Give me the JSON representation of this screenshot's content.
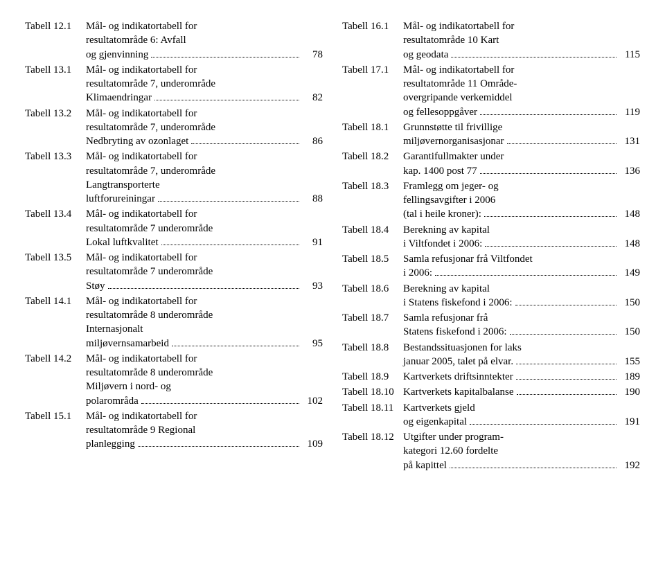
{
  "left": [
    {
      "label": "Tabell 12.1",
      "lines": [
        "Mål- og indikatortabell for",
        "resultatområde 6: Avfall"
      ],
      "last": "og gjenvinning",
      "page": "78"
    },
    {
      "label": "Tabell 13.1",
      "lines": [
        "Mål- og indikatortabell for",
        "resultatområde 7, underområde"
      ],
      "last": "Klimaendringar",
      "page": "82"
    },
    {
      "label": "Tabell 13.2",
      "lines": [
        "Mål- og indikatortabell for",
        "resultatområde 7, underområde"
      ],
      "last": "Nedbryting av ozonlaget",
      "page": "86"
    },
    {
      "label": "Tabell 13.3",
      "lines": [
        "Mål- og indikatortabell for",
        "resultatområde 7, underområde",
        "Langtransporterte"
      ],
      "last": "luftforureiningar",
      "page": "88"
    },
    {
      "label": "Tabell 13.4",
      "lines": [
        "Mål- og indikatortabell for",
        "resultatområde 7 underområde"
      ],
      "last": "Lokal luftkvalitet",
      "page": "91"
    },
    {
      "label": "Tabell 13.5",
      "lines": [
        "Mål- og indikatortabell for",
        "resultatområde 7 underområde"
      ],
      "last": "Støy",
      "page": "93"
    },
    {
      "label": "Tabell 14.1",
      "lines": [
        "Mål- og indikatortabell for",
        "resultatområde 8 underområde",
        "Internasjonalt"
      ],
      "last": "miljøvernsamarbeid",
      "page": "95"
    },
    {
      "label": "Tabell 14.2",
      "lines": [
        "Mål- og indikatortabell for",
        "resultatområde 8 underområde",
        "Miljøvern i nord- og"
      ],
      "last": "polarområda",
      "page": "102"
    },
    {
      "label": "Tabell 15.1",
      "lines": [
        "Mål- og indikatortabell for",
        "resultatområde 9 Regional"
      ],
      "last": "planlegging",
      "page": "109"
    }
  ],
  "right": [
    {
      "label": "Tabell 16.1",
      "lines": [
        "Mål- og indikatortabell for",
        "resultatområde 10 Kart"
      ],
      "last": "og geodata",
      "page": "115"
    },
    {
      "label": "Tabell 17.1",
      "lines": [
        "Mål- og indikatortabell for",
        "resultatområde 11 Område-",
        "overgripande verkemiddel"
      ],
      "last": "og fellesoppgåver",
      "page": "119"
    },
    {
      "label": "Tabell 18.1",
      "lines": [
        "Grunnstøtte til frivillige"
      ],
      "last": "miljøvernorganisasjonar",
      "page": "131"
    },
    {
      "label": "Tabell 18.2",
      "lines": [
        "Garantifullmakter under"
      ],
      "last": "kap. 1400 post 77",
      "page": "136"
    },
    {
      "label": "Tabell 18.3",
      "lines": [
        "Framlegg om jeger- og",
        "fellingsavgifter i 2006"
      ],
      "last": "(tal i heile kroner):",
      "page": "148"
    },
    {
      "label": "Tabell 18.4",
      "lines": [
        "Berekning av kapital"
      ],
      "last": "i Viltfondet i 2006:",
      "page": "148"
    },
    {
      "label": "Tabell 18.5",
      "lines": [
        "Samla refusjonar frå Viltfondet"
      ],
      "last": "i 2006:",
      "page": "149"
    },
    {
      "label": "Tabell 18.6",
      "lines": [
        "Berekning av kapital"
      ],
      "last": "i Statens fiskefond i 2006:",
      "page": "150"
    },
    {
      "label": "Tabell 18.7",
      "lines": [
        "Samla refusjonar frå"
      ],
      "last": "Statens fiskefond i 2006:",
      "page": "150"
    },
    {
      "label": "Tabell 18.8",
      "lines": [
        "Bestandssituasjonen for laks"
      ],
      "last": "januar 2005, talet på elvar.",
      "page": "155"
    },
    {
      "label": "Tabell 18.9",
      "lines": [],
      "last": "Kartverkets driftsinntekter",
      "page": "189"
    },
    {
      "label": "Tabell 18.10",
      "lines": [],
      "last": "Kartverkets kapitalbalanse",
      "page": "190"
    },
    {
      "label": "Tabell 18.11",
      "lines": [
        "Kartverkets gjeld"
      ],
      "last": "og eigenkapital",
      "page": "191"
    },
    {
      "label": "Tabell 18.12",
      "lines": [
        "Utgifter under program-",
        "kategori 12.60 fordelte"
      ],
      "last": "på kapittel",
      "page": "192"
    }
  ]
}
